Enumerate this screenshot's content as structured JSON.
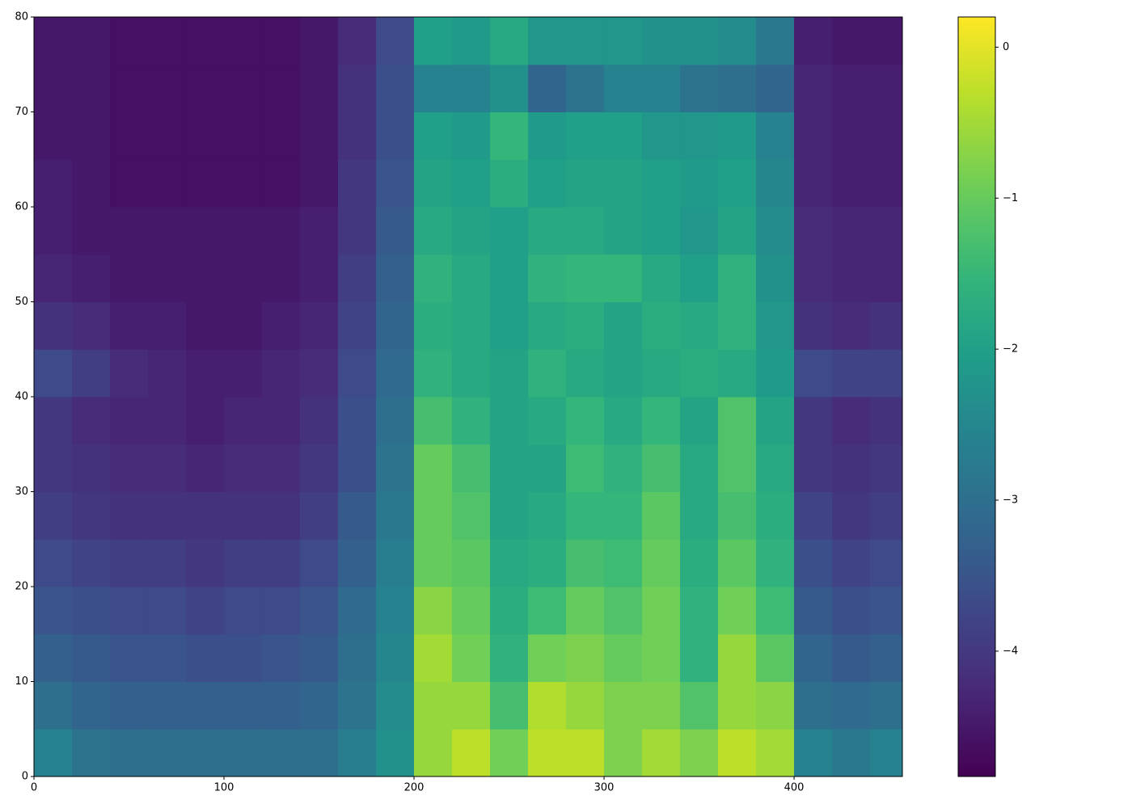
{
  "chart_data": {
    "type": "heatmap",
    "colormap": "viridis",
    "x": [
      0,
      20,
      40,
      60,
      80,
      100,
      120,
      140,
      160,
      180,
      200,
      220,
      240,
      260,
      280,
      300,
      320,
      340,
      360,
      380,
      400,
      420,
      440,
      457
    ],
    "y": [
      0,
      5,
      10,
      15,
      20,
      25,
      30,
      35,
      40,
      45,
      50,
      55,
      60,
      65,
      70,
      75,
      80
    ],
    "values": [
      [
        -2.6,
        -2.9,
        -3.0,
        -3.0,
        -3.0,
        -3.0,
        -3.0,
        -3.0,
        -2.7,
        -2.3,
        -0.6,
        -0.3,
        -0.9,
        -0.3,
        -0.3,
        -0.8,
        -0.5,
        -0.8,
        -0.3,
        -0.5,
        -2.6,
        -2.8,
        -2.6
      ],
      [
        -3.0,
        -3.2,
        -3.3,
        -3.3,
        -3.3,
        -3.3,
        -3.3,
        -3.2,
        -2.9,
        -2.4,
        -0.6,
        -0.6,
        -1.3,
        -0.4,
        -0.6,
        -0.8,
        -0.8,
        -1.2,
        -0.6,
        -0.7,
        -3.0,
        -3.1,
        -3.0
      ],
      [
        -3.3,
        -3.4,
        -3.5,
        -3.5,
        -3.6,
        -3.6,
        -3.5,
        -3.4,
        -3.0,
        -2.5,
        -0.5,
        -0.9,
        -1.6,
        -0.9,
        -0.8,
        -1.0,
        -0.9,
        -1.6,
        -0.6,
        -1.1,
        -3.2,
        -3.4,
        -3.3
      ],
      [
        -3.5,
        -3.6,
        -3.7,
        -3.7,
        -3.8,
        -3.7,
        -3.7,
        -3.5,
        -3.1,
        -2.6,
        -0.7,
        -1.0,
        -1.7,
        -1.4,
        -1.0,
        -1.2,
        -0.9,
        -1.6,
        -0.9,
        -1.4,
        -3.4,
        -3.6,
        -3.5
      ],
      [
        -3.7,
        -3.8,
        -3.9,
        -3.9,
        -4.0,
        -3.9,
        -3.9,
        -3.7,
        -3.3,
        -2.7,
        -1.0,
        -1.1,
        -1.8,
        -1.7,
        -1.3,
        -1.4,
        -1.0,
        -1.7,
        -1.1,
        -1.6,
        -3.6,
        -3.8,
        -3.7
      ],
      [
        -3.9,
        -4.0,
        -4.1,
        -4.1,
        -4.1,
        -4.1,
        -4.1,
        -3.9,
        -3.4,
        -2.8,
        -1.0,
        -1.2,
        -1.9,
        -1.8,
        -1.5,
        -1.5,
        -1.1,
        -1.8,
        -1.3,
        -1.7,
        -3.8,
        -4.0,
        -3.9
      ],
      [
        -4.0,
        -4.1,
        -4.2,
        -4.2,
        -4.3,
        -4.2,
        -4.2,
        -4.0,
        -3.6,
        -2.9,
        -1.0,
        -1.3,
        -1.9,
        -1.9,
        -1.4,
        -1.6,
        -1.3,
        -1.8,
        -1.2,
        -1.8,
        -4.0,
        -4.1,
        -4.0
      ],
      [
        -4.0,
        -4.2,
        -4.3,
        -4.3,
        -4.4,
        -4.3,
        -4.3,
        -4.1,
        -3.6,
        -3.0,
        -1.3,
        -1.6,
        -1.9,
        -1.8,
        -1.5,
        -1.8,
        -1.5,
        -1.9,
        -1.2,
        -1.9,
        -4.0,
        -4.2,
        -4.1
      ],
      [
        -3.7,
        -3.9,
        -4.2,
        -4.3,
        -4.4,
        -4.4,
        -4.3,
        -4.2,
        -3.7,
        -3.1,
        -1.6,
        -1.8,
        -1.9,
        -1.6,
        -1.8,
        -1.9,
        -1.8,
        -1.7,
        -1.8,
        -2.1,
        -3.7,
        -3.8,
        -3.8
      ],
      [
        -4.1,
        -4.2,
        -4.4,
        -4.4,
        -4.5,
        -4.5,
        -4.4,
        -4.3,
        -3.8,
        -3.2,
        -1.7,
        -1.8,
        -2.0,
        -1.8,
        -1.7,
        -1.9,
        -1.7,
        -1.8,
        -1.6,
        -2.2,
        -4.1,
        -4.2,
        -4.1
      ],
      [
        -4.3,
        -4.4,
        -4.5,
        -4.5,
        -4.5,
        -4.5,
        -4.5,
        -4.4,
        -3.9,
        -3.3,
        -1.6,
        -1.8,
        -2.0,
        -1.6,
        -1.5,
        -1.5,
        -1.8,
        -2.0,
        -1.6,
        -2.3,
        -4.2,
        -4.3,
        -4.3
      ],
      [
        -4.4,
        -4.5,
        -4.5,
        -4.5,
        -4.5,
        -4.5,
        -4.5,
        -4.4,
        -4.0,
        -3.4,
        -1.8,
        -1.9,
        -2.0,
        -1.8,
        -1.8,
        -1.9,
        -2.0,
        -2.2,
        -1.9,
        -2.4,
        -4.2,
        -4.3,
        -4.3
      ],
      [
        -4.4,
        -4.5,
        -4.6,
        -4.6,
        -4.6,
        -4.6,
        -4.6,
        -4.5,
        -4.0,
        -3.5,
        -1.9,
        -2.0,
        -1.7,
        -2.0,
        -1.9,
        -1.9,
        -2.0,
        -2.1,
        -2.0,
        -2.5,
        -4.3,
        -4.4,
        -4.4
      ],
      [
        -4.5,
        -4.5,
        -4.6,
        -4.6,
        -4.6,
        -4.6,
        -4.6,
        -4.5,
        -4.1,
        -3.6,
        -2.0,
        -2.1,
        -1.5,
        -2.1,
        -2.0,
        -2.0,
        -2.2,
        -2.2,
        -2.1,
        -2.6,
        -4.3,
        -4.4,
        -4.4
      ],
      [
        -4.5,
        -4.5,
        -4.6,
        -4.6,
        -4.6,
        -4.6,
        -4.6,
        -4.5,
        -4.1,
        -3.6,
        -2.6,
        -2.6,
        -2.3,
        -3.2,
        -2.9,
        -2.6,
        -2.6,
        -2.9,
        -3.0,
        -3.2,
        -4.3,
        -4.4,
        -4.4
      ],
      [
        -4.5,
        -4.5,
        -4.6,
        -4.6,
        -4.6,
        -4.6,
        -4.6,
        -4.5,
        -4.2,
        -3.7,
        -2.0,
        -2.1,
        -1.8,
        -2.2,
        -2.2,
        -2.2,
        -2.3,
        -2.3,
        -2.4,
        -2.8,
        -4.4,
        -4.5,
        -4.5
      ]
    ],
    "xlim": [
      0,
      457
    ],
    "ylim": [
      0,
      80
    ],
    "xticks": [
      0,
      100,
      200,
      300,
      400
    ],
    "yticks": [
      0,
      10,
      20,
      30,
      40,
      50,
      60,
      70,
      80
    ],
    "clim": [
      -4.83,
      0.2
    ],
    "cticks": [
      0,
      {
        "value": -1,
        "label": "−1"
      },
      {
        "value": -2,
        "label": "−2"
      },
      {
        "value": -3,
        "label": "−3"
      },
      {
        "value": -4,
        "label": "−4"
      }
    ]
  }
}
